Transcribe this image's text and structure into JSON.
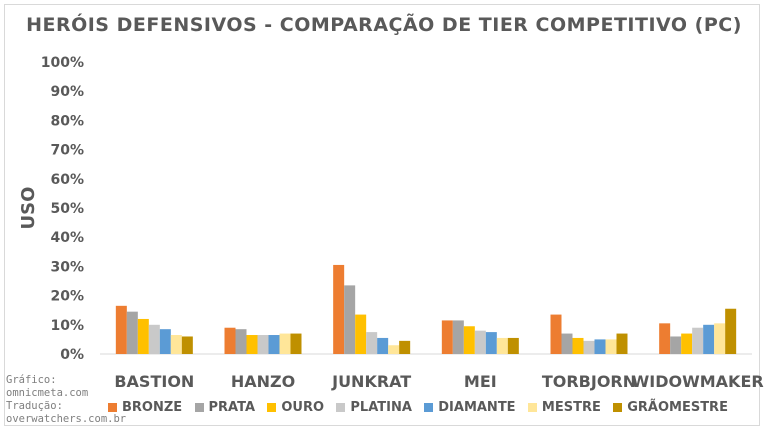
{
  "chart_data": {
    "type": "bar",
    "title": "HERÓIS DEFENSIVOS - COMPARAÇÃO DE TIER COMPETITIVO (PC)",
    "xlabel": "",
    "ylabel": "USO",
    "ylim": [
      0,
      100
    ],
    "yticks": [
      "0%",
      "10%",
      "20%",
      "30%",
      "40%",
      "50%",
      "60%",
      "70%",
      "80%",
      "90%",
      "100%"
    ],
    "categories": [
      "BASTION",
      "HANZO",
      "JUNKRAT",
      "MEI",
      "TORBJORN",
      "WIDOWMAKER"
    ],
    "series": [
      {
        "name": "BRONZE",
        "color": "#ED7D31",
        "values": [
          16.5,
          9,
          30.5,
          11.5,
          13.5,
          10.5
        ]
      },
      {
        "name": "PRATA",
        "color": "#A5A5A5",
        "values": [
          14.5,
          8.5,
          23.5,
          11.5,
          7,
          6
        ]
      },
      {
        "name": "OURO",
        "color": "#FFC000",
        "values": [
          12,
          6.5,
          13.5,
          9.5,
          5.5,
          7
        ]
      },
      {
        "name": "PLATINA",
        "color": "#C9C9C9",
        "values": [
          10,
          6.5,
          7.5,
          8,
          4.5,
          9
        ]
      },
      {
        "name": "DIAMANTE",
        "color": "#5B9BD5",
        "values": [
          8.5,
          6.5,
          5.5,
          7.5,
          5,
          10
        ]
      },
      {
        "name": "MESTRE",
        "color": "#FFE699",
        "values": [
          6.5,
          7,
          3,
          5.5,
          5,
          10.5
        ]
      },
      {
        "name": "GRÃOMESTRE",
        "color": "#BF9000",
        "values": [
          6,
          7,
          4.5,
          5.5,
          7,
          15.5
        ]
      }
    ],
    "grid": false,
    "legend_position": "bottom"
  },
  "credits": {
    "line1": "Gráfico:",
    "line2": "omnicmeta.com",
    "line3": "Tradução:",
    "line4": "overwatchers.com.br"
  }
}
